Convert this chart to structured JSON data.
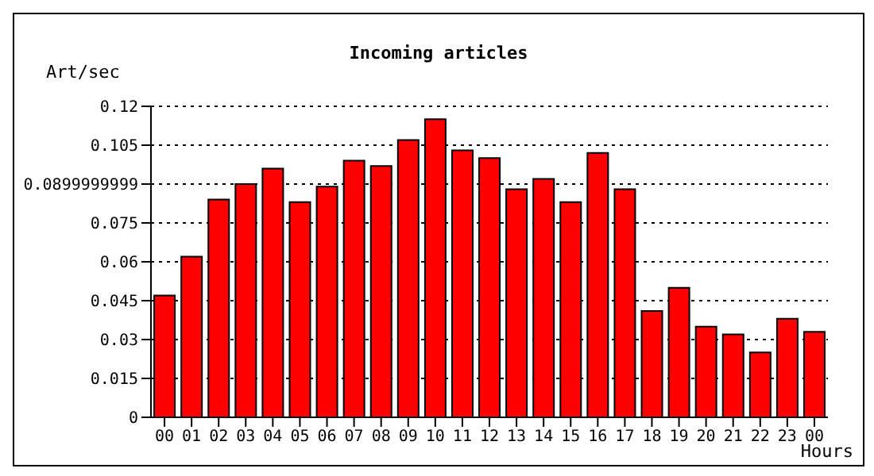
{
  "chart_data": {
    "type": "bar",
    "title": "Incoming articles",
    "xlabel": "Hours",
    "ylabel": "Art/sec",
    "categories": [
      "00",
      "01",
      "02",
      "03",
      "04",
      "05",
      "06",
      "07",
      "08",
      "09",
      "10",
      "11",
      "12",
      "13",
      "14",
      "15",
      "16",
      "17",
      "18",
      "19",
      "20",
      "21",
      "22",
      "23",
      "00"
    ],
    "values": [
      0.047,
      0.062,
      0.084,
      0.09,
      0.096,
      0.083,
      0.089,
      0.099,
      0.097,
      0.107,
      0.115,
      0.103,
      0.1,
      0.088,
      0.092,
      0.083,
      0.102,
      0.088,
      0.041,
      0.05,
      0.035,
      0.032,
      0.025,
      0.038,
      0.033
    ],
    "color": "#ff0000",
    "ylim": [
      0,
      0.12
    ],
    "yticks": [
      0,
      0.015,
      0.03,
      0.045,
      0.06,
      0.075,
      0.0899999999,
      0.105,
      0.12
    ],
    "grid": "y"
  }
}
